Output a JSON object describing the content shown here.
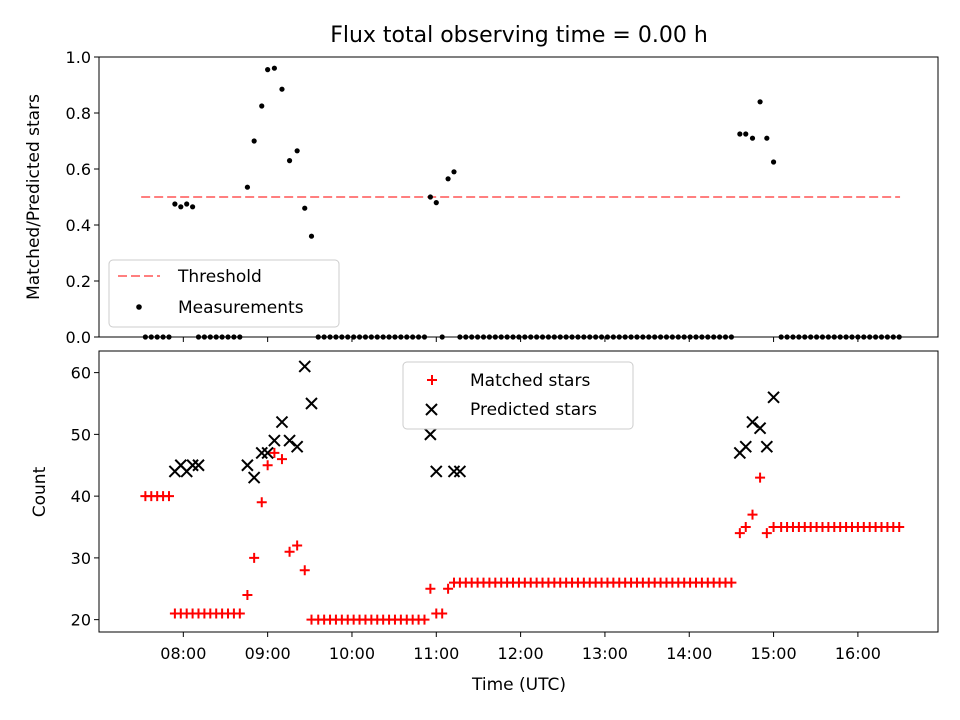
{
  "chart_data": {
    "title": "Flux total observing time = 0.00 h",
    "xlabel": "Time (UTC)",
    "xticks": [
      "08:00",
      "09:00",
      "10:00",
      "11:00",
      "12:00",
      "13:00",
      "14:00",
      "15:00",
      "16:00"
    ],
    "xrange_hours": [
      7.0,
      16.95
    ],
    "panels": [
      {
        "type": "scatter",
        "ylabel": "Matched/Predicted stars",
        "ylim": [
          0,
          1.0
        ],
        "yticks": [
          "0.0",
          "0.2",
          "0.4",
          "0.6",
          "0.8",
          "1.0"
        ],
        "legend": {
          "position": "lower-left",
          "entries": [
            "Threshold",
            "Measurements"
          ]
        },
        "threshold": {
          "name": "Threshold",
          "value": 0.5,
          "x_start": 7.5,
          "x_end": 16.5,
          "color": "#ff7f7f"
        },
        "measurements": {
          "name": "Measurements",
          "color": "#000000",
          "x": [
            7.55,
            7.62,
            7.69,
            7.76,
            7.83,
            7.9,
            7.97,
            8.04,
            8.11,
            8.18,
            8.25,
            8.32,
            8.39,
            8.46,
            8.53,
            8.6,
            8.67,
            8.76,
            8.84,
            8.93,
            9.0,
            9.08,
            9.17,
            9.26,
            9.35,
            9.44,
            9.52,
            9.6,
            9.67,
            9.74,
            9.81,
            9.88,
            9.95,
            10.02,
            10.09,
            10.16,
            10.23,
            10.3,
            10.37,
            10.44,
            10.51,
            10.58,
            10.65,
            10.72,
            10.79,
            10.86,
            10.93,
            11.0,
            11.07,
            11.14,
            11.21,
            11.28,
            11.35,
            11.42,
            11.49,
            11.56,
            11.63,
            11.7,
            11.77,
            11.84,
            11.91,
            11.98,
            12.05,
            12.12,
            12.19,
            12.26,
            12.33,
            12.4,
            12.47,
            12.54,
            12.61,
            12.68,
            12.75,
            12.82,
            12.89,
            12.96,
            13.03,
            13.1,
            13.17,
            13.24,
            13.31,
            13.38,
            13.45,
            13.52,
            13.59,
            13.66,
            13.73,
            13.8,
            13.87,
            13.94,
            14.01,
            14.08,
            14.15,
            14.22,
            14.29,
            14.36,
            14.43,
            14.5,
            14.6,
            14.67,
            14.75,
            14.84,
            14.92,
            15.0,
            15.09,
            15.16,
            15.23,
            15.3,
            15.37,
            15.44,
            15.51,
            15.58,
            15.65,
            15.72,
            15.79,
            15.86,
            15.93,
            16.0,
            16.07,
            16.14,
            16.21,
            16.28,
            16.35,
            16.42,
            16.49
          ],
          "y": [
            0,
            0,
            0,
            0,
            0,
            0.475,
            0.465,
            0.475,
            0.465,
            0,
            0,
            0,
            0,
            0,
            0,
            0,
            0,
            0.535,
            0.7,
            0.825,
            0.955,
            0.96,
            0.885,
            0.63,
            0.665,
            0.46,
            0.36,
            0,
            0,
            0,
            0,
            0,
            0,
            0,
            0,
            0,
            0,
            0,
            0,
            0,
            0,
            0,
            0,
            0,
            0,
            0,
            0.5,
            0.48,
            0,
            0.565,
            0.59,
            0,
            0,
            0,
            0,
            0,
            0,
            0,
            0,
            0,
            0,
            0,
            0,
            0,
            0,
            0,
            0,
            0,
            0,
            0,
            0,
            0,
            0,
            0,
            0,
            0,
            0,
            0,
            0,
            0,
            0,
            0,
            0,
            0,
            0,
            0,
            0,
            0,
            0,
            0,
            0,
            0,
            0,
            0,
            0,
            0,
            0,
            0,
            0.725,
            0.725,
            0.71,
            0.84,
            0.71,
            0.625,
            0,
            0,
            0,
            0,
            0,
            0,
            0,
            0,
            0,
            0,
            0,
            0,
            0,
            0,
            0,
            0,
            0,
            0,
            0,
            0,
            0
          ]
        }
      },
      {
        "type": "scatter",
        "ylabel": "Count",
        "ylim": [
          18,
          63.5
        ],
        "yticks": [
          "20",
          "30",
          "40",
          "50",
          "60"
        ],
        "legend": {
          "position": "upper-center",
          "entries": [
            "Matched stars",
            "Predicted stars"
          ]
        },
        "matched": {
          "name": "Matched stars",
          "color": "#ff0000",
          "marker": "plus",
          "x": [
            7.55,
            7.62,
            7.69,
            7.76,
            7.83,
            7.9,
            7.97,
            8.04,
            8.11,
            8.18,
            8.25,
            8.32,
            8.39,
            8.46,
            8.53,
            8.6,
            8.67,
            8.76,
            8.84,
            8.93,
            9.0,
            9.08,
            9.17,
            9.26,
            9.35,
            9.44,
            9.52,
            9.6,
            9.67,
            9.74,
            9.81,
            9.88,
            9.95,
            10.02,
            10.09,
            10.16,
            10.23,
            10.3,
            10.37,
            10.44,
            10.51,
            10.58,
            10.65,
            10.72,
            10.79,
            10.86,
            10.93,
            11.0,
            11.07,
            11.14,
            11.21,
            11.28,
            11.35,
            11.42,
            11.49,
            11.56,
            11.63,
            11.7,
            11.77,
            11.84,
            11.91,
            11.98,
            12.05,
            12.12,
            12.19,
            12.26,
            12.33,
            12.4,
            12.47,
            12.54,
            12.61,
            12.68,
            12.75,
            12.82,
            12.89,
            12.96,
            13.03,
            13.1,
            13.17,
            13.24,
            13.31,
            13.38,
            13.45,
            13.52,
            13.59,
            13.66,
            13.73,
            13.8,
            13.87,
            13.94,
            14.01,
            14.08,
            14.15,
            14.22,
            14.29,
            14.36,
            14.43,
            14.5,
            14.6,
            14.67,
            14.75,
            14.84,
            14.92,
            15.0,
            15.09,
            15.16,
            15.23,
            15.3,
            15.37,
            15.44,
            15.51,
            15.58,
            15.65,
            15.72,
            15.79,
            15.86,
            15.93,
            16.0,
            16.07,
            16.14,
            16.21,
            16.28,
            16.35,
            16.42,
            16.49
          ],
          "y": [
            40,
            40,
            40,
            40,
            40,
            21,
            21,
            21,
            21,
            21,
            21,
            21,
            21,
            21,
            21,
            21,
            21,
            24,
            30,
            39,
            45,
            47,
            46,
            31,
            32,
            28,
            20,
            20,
            20,
            20,
            20,
            20,
            20,
            20,
            20,
            20,
            20,
            20,
            20,
            20,
            20,
            20,
            20,
            20,
            20,
            20,
            25,
            21,
            21,
            25,
            26,
            26,
            26,
            26,
            26,
            26,
            26,
            26,
            26,
            26,
            26,
            26,
            26,
            26,
            26,
            26,
            26,
            26,
            26,
            26,
            26,
            26,
            26,
            26,
            26,
            26,
            26,
            26,
            26,
            26,
            26,
            26,
            26,
            26,
            26,
            26,
            26,
            26,
            26,
            26,
            26,
            26,
            26,
            26,
            26,
            26,
            26,
            26,
            34,
            35,
            37,
            43,
            34,
            35,
            35,
            35,
            35,
            35,
            35,
            35,
            35,
            35,
            35,
            35,
            35,
            35,
            35,
            35,
            35,
            35,
            35,
            35,
            35,
            35,
            35
          ]
        },
        "predicted": {
          "name": "Predicted stars",
          "color": "#000000",
          "marker": "x",
          "x": [
            7.9,
            7.97,
            8.04,
            8.11,
            8.18,
            8.76,
            8.84,
            8.93,
            9.0,
            9.08,
            9.17,
            9.26,
            9.35,
            9.44,
            9.52,
            10.93,
            11.0,
            11.21,
            11.28,
            14.6,
            14.67,
            14.75,
            14.84,
            14.92,
            15.0
          ],
          "y": [
            44,
            45,
            44,
            45,
            45,
            45,
            43,
            47,
            47,
            49,
            52,
            49,
            48,
            61,
            55,
            50,
            44,
            44,
            44,
            47,
            48,
            52,
            51,
            48,
            56
          ]
        }
      }
    ]
  }
}
